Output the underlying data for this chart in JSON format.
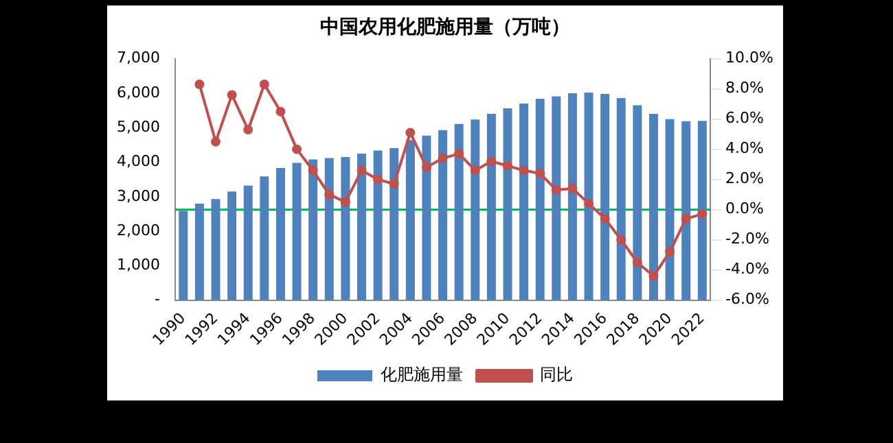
{
  "chart_data": {
    "type": "bar",
    "title": "中国农用化肥施用量（万吨）",
    "categories": [
      "1990",
      null,
      "1992",
      null,
      "1994",
      null,
      "1996",
      null,
      "1998",
      null,
      "2000",
      null,
      "2002",
      null,
      "2004",
      null,
      "2006",
      null,
      "2008",
      null,
      "2010",
      null,
      "2012",
      null,
      "2014",
      null,
      "2016",
      null,
      "2018",
      null,
      "2020",
      null,
      "2022"
    ],
    "series": [
      {
        "name": "化肥施用量",
        "color": "#4f81bd",
        "values": [
          2590,
          2800,
          2930,
          3150,
          3320,
          3590,
          3830,
          3980,
          4080,
          4120,
          4150,
          4250,
          4340,
          4410,
          4640,
          4770,
          4930,
          5110,
          5240,
          5400,
          5560,
          5700,
          5840,
          5910,
          6000,
          6020,
          5980,
          5860,
          5650,
          5400,
          5250,
          5190,
          5200
        ]
      },
      {
        "name": "同比",
        "type": "line",
        "axis": "y2",
        "color": "#c0504d",
        "marker": "circle",
        "values": [
          null,
          8.3,
          4.5,
          7.6,
          5.3,
          8.3,
          6.5,
          4.0,
          2.6,
          1.0,
          0.5,
          2.6,
          2.0,
          1.7,
          5.1,
          2.8,
          3.4,
          3.7,
          2.6,
          3.2,
          2.9,
          2.6,
          2.4,
          1.3,
          1.4,
          0.4,
          -0.6,
          -2.0,
          -3.5,
          -4.4,
          -2.8,
          -0.6,
          -0.3
        ]
      }
    ],
    "ylim": [
      0,
      7000
    ],
    "yticks": [
      {
        "value": 0,
        "label": "-"
      },
      {
        "value": 1000,
        "label": "1,000"
      },
      {
        "value": 2000,
        "label": "2,000"
      },
      {
        "value": 3000,
        "label": "3,000"
      },
      {
        "value": 4000,
        "label": "4,000"
      },
      {
        "value": 5000,
        "label": "5,000"
      },
      {
        "value": 6000,
        "label": "6,000"
      },
      {
        "value": 7000,
        "label": "7,000"
      }
    ],
    "y2lim": [
      -6,
      10
    ],
    "y2ticks": [
      {
        "value": -6,
        "label": "-6.0%"
      },
      {
        "value": -4,
        "label": "-4.0%"
      },
      {
        "value": -2,
        "label": "-2.0%"
      },
      {
        "value": 0,
        "label": "0.0%"
      },
      {
        "value": 2,
        "label": "2.0%"
      },
      {
        "value": 4,
        "label": "4.0%"
      },
      {
        "value": 6,
        "label": "6.0%"
      },
      {
        "value": 8,
        "label": "8.0%"
      },
      {
        "value": 10,
        "label": "10.0%"
      }
    ],
    "ref_lines": [
      {
        "axis": "y2",
        "value": 0,
        "color": "#00b050"
      }
    ],
    "grid": false,
    "legend": "bottom"
  }
}
